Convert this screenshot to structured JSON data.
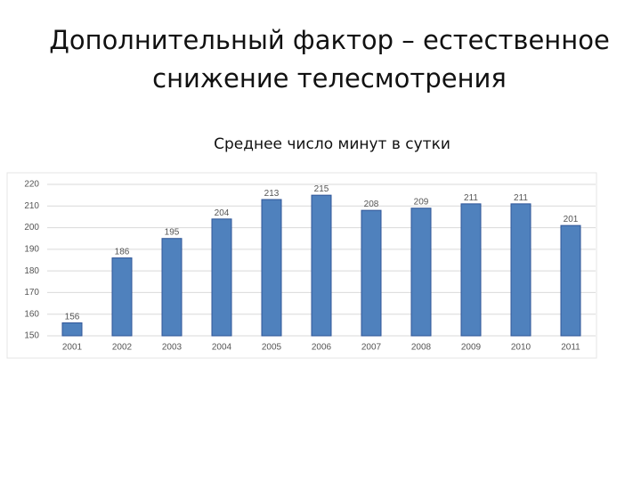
{
  "chart_data": {
    "type": "bar",
    "title": [
      "Дополнительный фактор – естественное",
      "снижение телесмотрения"
    ],
    "subtitle": "Среднее число минут в сутки",
    "categories": [
      "2001",
      "2002",
      "2003",
      "2004",
      "2005",
      "2006",
      "2007",
      "2008",
      "2009",
      "2010",
      "2011"
    ],
    "values": [
      156,
      186,
      195,
      204,
      213,
      215,
      208,
      209,
      211,
      211,
      201
    ],
    "color": "#4f81bd",
    "ylim": [
      150,
      220
    ],
    "yticks": [
      150,
      160,
      170,
      180,
      190,
      200,
      210,
      220
    ],
    "grid": true
  }
}
